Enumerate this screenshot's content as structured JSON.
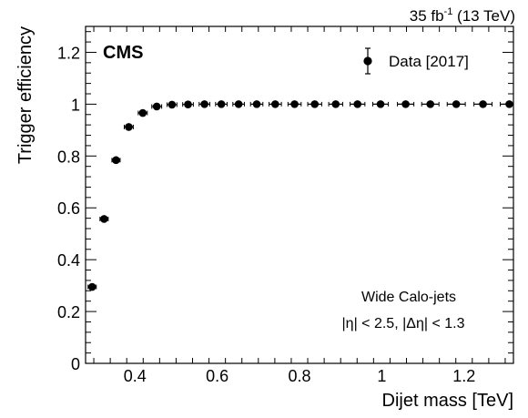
{
  "header": {
    "lumi_value": "35 fb",
    "lumi_exp": "-1",
    "energy": " (13 TeV)"
  },
  "chart_data": {
    "type": "scatter",
    "experiment": "CMS",
    "xlabel": "Dijet mass [TeV]",
    "ylabel": "Trigger efficiency",
    "xlim": [
      0.28,
      1.32
    ],
    "ylim": [
      0,
      1.3
    ],
    "xticks": [
      {
        "value": 0.4,
        "label": "0.4"
      },
      {
        "value": 0.6,
        "label": "0.6"
      },
      {
        "value": 0.8,
        "label": "0.8"
      },
      {
        "value": 1.0,
        "label": "1"
      },
      {
        "value": 1.2,
        "label": "1.2"
      }
    ],
    "yticks": [
      {
        "value": 0,
        "label": "0"
      },
      {
        "value": 0.2,
        "label": "0.2"
      },
      {
        "value": 0.4,
        "label": "0.4"
      },
      {
        "value": 0.6,
        "label": "0.6"
      },
      {
        "value": 0.8,
        "label": "0.8"
      },
      {
        "value": 1.0,
        "label": "1"
      },
      {
        "value": 1.2,
        "label": "1.2"
      }
    ],
    "legend": {
      "placement": "top-right",
      "entries": [
        "Data [2017]"
      ]
    },
    "annotations": [
      "Wide Calo-jets",
      "|η| < 2.5, |Δη| < 1.3"
    ],
    "grid": false,
    "series": [
      {
        "name": "Data [2017]",
        "marker": "circle",
        "color": "#000000",
        "points": [
          {
            "x": 0.296,
            "y": 0.295,
            "xerr": 0.01,
            "yerr": 0.008
          },
          {
            "x": 0.325,
            "y": 0.557,
            "xerr": 0.01,
            "yerr": 0.007
          },
          {
            "x": 0.354,
            "y": 0.784,
            "xerr": 0.01,
            "yerr": 0.006
          },
          {
            "x": 0.385,
            "y": 0.912,
            "xerr": 0.011,
            "yerr": 0.005
          },
          {
            "x": 0.419,
            "y": 0.966,
            "xerr": 0.011,
            "yerr": 0.004
          },
          {
            "x": 0.453,
            "y": 0.991,
            "xerr": 0.012,
            "yerr": 0.003
          },
          {
            "x": 0.49,
            "y": 0.998,
            "xerr": 0.012,
            "yerr": 0.002
          },
          {
            "x": 0.529,
            "y": 0.999,
            "xerr": 0.013,
            "yerr": 0.002
          },
          {
            "x": 0.569,
            "y": 1.0,
            "xerr": 0.013,
            "yerr": 0.002
          },
          {
            "x": 0.61,
            "y": 1.0,
            "xerr": 0.014,
            "yerr": 0.002
          },
          {
            "x": 0.652,
            "y": 1.0,
            "xerr": 0.014,
            "yerr": 0.002
          },
          {
            "x": 0.696,
            "y": 1.0,
            "xerr": 0.015,
            "yerr": 0.002
          },
          {
            "x": 0.741,
            "y": 1.0,
            "xerr": 0.015,
            "yerr": 0.002
          },
          {
            "x": 0.788,
            "y": 1.0,
            "xerr": 0.016,
            "yerr": 0.002
          },
          {
            "x": 0.837,
            "y": 1.0,
            "xerr": 0.017,
            "yerr": 0.002
          },
          {
            "x": 0.888,
            "y": 1.0,
            "xerr": 0.017,
            "yerr": 0.002
          },
          {
            "x": 0.941,
            "y": 1.0,
            "xerr": 0.018,
            "yerr": 0.003
          },
          {
            "x": 0.997,
            "y": 1.0,
            "xerr": 0.019,
            "yerr": 0.003
          },
          {
            "x": 1.058,
            "y": 1.0,
            "xerr": 0.02,
            "yerr": 0.004
          },
          {
            "x": 1.118,
            "y": 1.0,
            "xerr": 0.021,
            "yerr": 0.005
          },
          {
            "x": 1.181,
            "y": 1.0,
            "xerr": 0.022,
            "yerr": 0.006
          },
          {
            "x": 1.246,
            "y": 1.0,
            "xerr": 0.022,
            "yerr": 0.012
          },
          {
            "x": 1.31,
            "y": 1.0,
            "xerr": 0.022,
            "yerr": 0.008
          }
        ]
      }
    ]
  }
}
